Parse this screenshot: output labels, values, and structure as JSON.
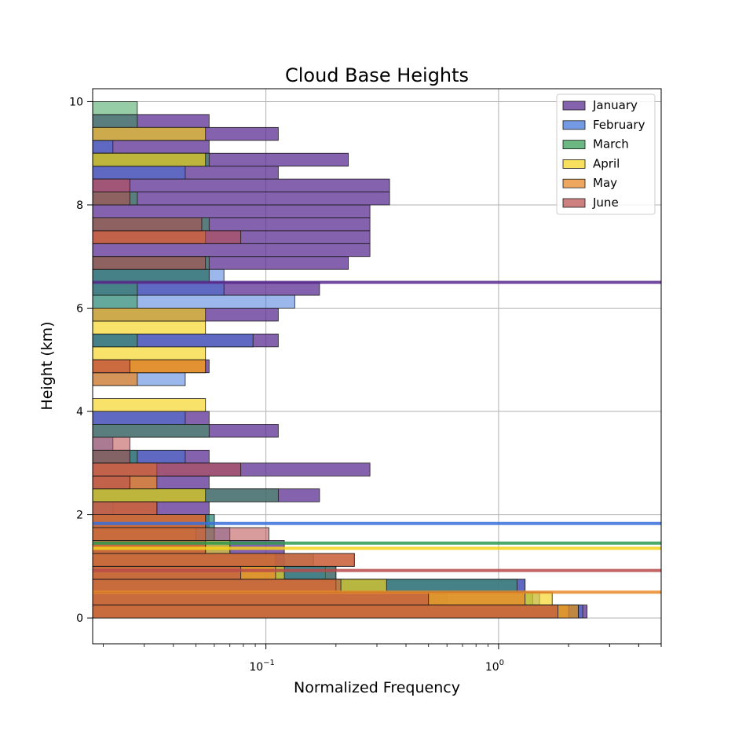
{
  "chart_data": {
    "type": "bar",
    "orientation": "horizontal",
    "histogram": true,
    "title": "Cloud Base Heights",
    "xlabel": "Normalized Frequency",
    "ylabel": "Height (km)",
    "xscale": "log",
    "xlim": [
      0.018,
      5
    ],
    "ylim": [
      -0.5,
      10.25
    ],
    "y_ticks": [
      "0",
      "2",
      "4",
      "6",
      "8",
      "10"
    ],
    "x_ticks": [
      {
        "value": 0.1,
        "base": "10",
        "exp": "−1"
      },
      {
        "value": 1,
        "base": "10",
        "exp": "0"
      }
    ],
    "grid": true,
    "legend_position": "top-right",
    "bin_height_km": 0.25,
    "series": [
      {
        "name": "January",
        "color": "#5c2d91",
        "bar_opacity": 0.75,
        "mean_km": 6.5,
        "bins": [
          [
            0.0,
            2.4
          ],
          [
            0.25,
            0.6
          ],
          [
            0.5,
            1.3
          ],
          [
            0.75,
            0.2
          ],
          [
            1.0,
            0.12
          ],
          [
            1.25,
            0.12
          ],
          [
            1.5,
            0.05
          ],
          [
            1.75,
            0.057
          ],
          [
            2.0,
            0.057
          ],
          [
            2.25,
            0.17
          ],
          [
            2.5,
            0.057
          ],
          [
            2.75,
            0.28
          ],
          [
            3.0,
            0.057
          ],
          [
            3.5,
            0.113
          ],
          [
            3.75,
            0.057
          ],
          [
            4.75,
            0.057
          ],
          [
            5.25,
            0.113
          ],
          [
            5.75,
            0.113
          ],
          [
            6.25,
            0.17
          ],
          [
            6.5,
            0.057
          ],
          [
            6.75,
            0.226
          ],
          [
            7.0,
            0.28
          ],
          [
            7.25,
            0.28
          ],
          [
            7.5,
            0.28
          ],
          [
            7.75,
            0.28
          ],
          [
            8.0,
            0.34
          ],
          [
            8.25,
            0.34
          ],
          [
            8.5,
            0.113
          ],
          [
            8.75,
            0.226
          ],
          [
            9.0,
            0.057
          ],
          [
            9.25,
            0.113
          ],
          [
            9.5,
            0.057
          ]
        ]
      },
      {
        "name": "February",
        "color": "#3a6fd8",
        "bar_opacity": 0.5,
        "mean_km": 1.83,
        "bins": [
          [
            0.0,
            2.3
          ],
          [
            0.25,
            1.5
          ],
          [
            0.5,
            1.3
          ],
          [
            0.75,
            0.18
          ],
          [
            1.0,
            0.1
          ],
          [
            1.25,
            0.07
          ],
          [
            1.5,
            0.07
          ],
          [
            1.75,
            0.06
          ],
          [
            2.0,
            0.022
          ],
          [
            3.0,
            0.045
          ],
          [
            3.25,
            0.022
          ],
          [
            3.75,
            0.045
          ],
          [
            4.5,
            0.045
          ],
          [
            5.25,
            0.088
          ],
          [
            6.0,
            0.133
          ],
          [
            6.25,
            0.066
          ],
          [
            6.5,
            0.066
          ],
          [
            8.5,
            0.045
          ],
          [
            9.0,
            0.022
          ]
        ]
      },
      {
        "name": "March",
        "color": "#2e9a4e",
        "bar_opacity": 0.5,
        "mean_km": 1.45,
        "bins": [
          [
            0.0,
            2.2
          ],
          [
            0.25,
            1.4
          ],
          [
            0.5,
            1.2
          ],
          [
            0.75,
            0.2
          ],
          [
            1.0,
            0.16
          ],
          [
            1.25,
            0.05
          ],
          [
            1.5,
            0.06
          ],
          [
            1.75,
            0.06
          ],
          [
            2.25,
            0.113
          ],
          [
            3.0,
            0.028
          ],
          [
            3.5,
            0.057
          ],
          [
            5.25,
            0.028
          ],
          [
            6.0,
            0.028
          ],
          [
            6.25,
            0.028
          ],
          [
            6.5,
            0.057
          ],
          [
            6.75,
            0.057
          ],
          [
            7.5,
            0.057
          ],
          [
            8.0,
            0.028
          ],
          [
            8.75,
            0.057
          ],
          [
            9.5,
            0.028
          ],
          [
            9.75,
            0.028
          ]
        ]
      },
      {
        "name": "April",
        "color": "#f5d21a",
        "bar_opacity": 0.65,
        "mean_km": 1.35,
        "bins": [
          [
            0.0,
            2.0
          ],
          [
            0.25,
            1.7
          ],
          [
            0.5,
            0.33
          ],
          [
            0.75,
            0.12
          ],
          [
            1.0,
            0.11
          ],
          [
            1.25,
            0.07
          ],
          [
            1.5,
            0.05
          ],
          [
            1.75,
            0.055
          ],
          [
            2.25,
            0.055
          ],
          [
            4.0,
            0.055
          ],
          [
            4.75,
            0.055
          ],
          [
            5.0,
            0.055
          ],
          [
            5.5,
            0.055
          ],
          [
            5.75,
            0.055
          ],
          [
            8.75,
            0.055
          ],
          [
            9.25,
            0.055
          ]
        ]
      },
      {
        "name": "May",
        "color": "#e8892a",
        "bar_opacity": 0.75,
        "mean_km": 0.5,
        "bins": [
          [
            0.0,
            2.2
          ],
          [
            0.25,
            1.3
          ],
          [
            0.5,
            0.2
          ],
          [
            0.75,
            0.11
          ],
          [
            1.0,
            0.24
          ],
          [
            1.25,
            0.055
          ],
          [
            1.5,
            0.055
          ],
          [
            1.75,
            0.055
          ],
          [
            2.0,
            0.034
          ],
          [
            2.5,
            0.034
          ],
          [
            2.75,
            0.034
          ],
          [
            4.5,
            0.028
          ],
          [
            4.75,
            0.055
          ],
          [
            7.25,
            0.055
          ]
        ]
      },
      {
        "name": "June",
        "color": "#b84a4a",
        "bar_opacity": 0.55,
        "mean_km": 0.92,
        "bins": [
          [
            0.0,
            1.8
          ],
          [
            0.25,
            0.5
          ],
          [
            0.5,
            0.21
          ],
          [
            0.75,
            0.078
          ],
          [
            1.0,
            0.24
          ],
          [
            1.25,
            0.055
          ],
          [
            1.5,
            0.103
          ],
          [
            1.75,
            0.055
          ],
          [
            2.0,
            0.034
          ],
          [
            2.5,
            0.026
          ],
          [
            2.75,
            0.078
          ],
          [
            3.0,
            0.026
          ],
          [
            3.25,
            0.026
          ],
          [
            4.75,
            0.026
          ],
          [
            6.75,
            0.055
          ],
          [
            7.25,
            0.078
          ],
          [
            7.5,
            0.053
          ],
          [
            8.0,
            0.026
          ],
          [
            8.25,
            0.026
          ]
        ]
      }
    ]
  }
}
